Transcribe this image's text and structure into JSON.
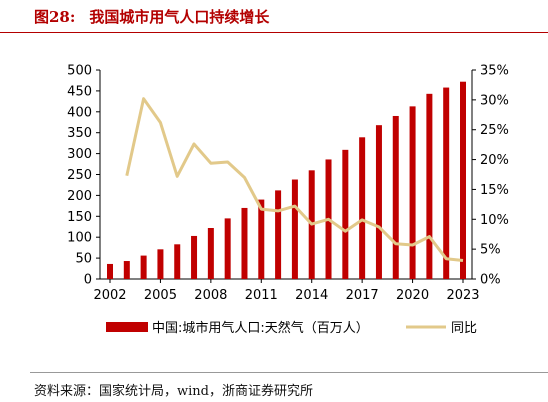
{
  "figure": {
    "number": "图28:",
    "title": "我国城市用气人口持续增长",
    "source": "资料来源：国家统计局，wind，浙商证券研究所"
  },
  "colors": {
    "bar": "#c00000",
    "line": "#e2c98a",
    "title": "#b30000",
    "axis": "#000000"
  },
  "chart_data": {
    "type": "bar+line",
    "years": [
      2002,
      2003,
      2004,
      2005,
      2006,
      2007,
      2008,
      2009,
      2010,
      2011,
      2012,
      2013,
      2014,
      2015,
      2016,
      2017,
      2018,
      2019,
      2020,
      2021,
      2022,
      2023
    ],
    "x_tick_labels": [
      "2002",
      "2005",
      "2008",
      "2011",
      "2014",
      "2017",
      "2020",
      "2023"
    ],
    "series": [
      {
        "name": "中国:城市用气人口:天然气（百万人）",
        "axis": "left",
        "kind": "bar",
        "values": [
          36,
          43,
          56,
          71,
          83,
          103,
          122,
          145,
          170,
          190,
          212,
          238,
          260,
          286,
          309,
          339,
          368,
          390,
          413,
          443,
          458,
          472
        ]
      },
      {
        "name": "同比",
        "axis": "right",
        "kind": "line",
        "values": [
          null,
          17.3,
          30.2,
          26.2,
          17.2,
          22.6,
          19.4,
          19.6,
          17.0,
          11.7,
          11.4,
          12.2,
          9.2,
          10.0,
          8.0,
          9.9,
          8.7,
          5.9,
          5.7,
          7.1,
          3.4,
          3.1
        ]
      }
    ],
    "y_left": {
      "min": 0,
      "max": 500,
      "ticks": [
        "0",
        "50",
        "100",
        "150",
        "200",
        "250",
        "300",
        "350",
        "400",
        "450",
        "500"
      ]
    },
    "y_right": {
      "min": 0,
      "max": 35,
      "ticks": [
        "0%",
        "5%",
        "10%",
        "15%",
        "20%",
        "25%",
        "30%",
        "35%"
      ]
    },
    "legend_position": "bottom",
    "grid": false
  }
}
